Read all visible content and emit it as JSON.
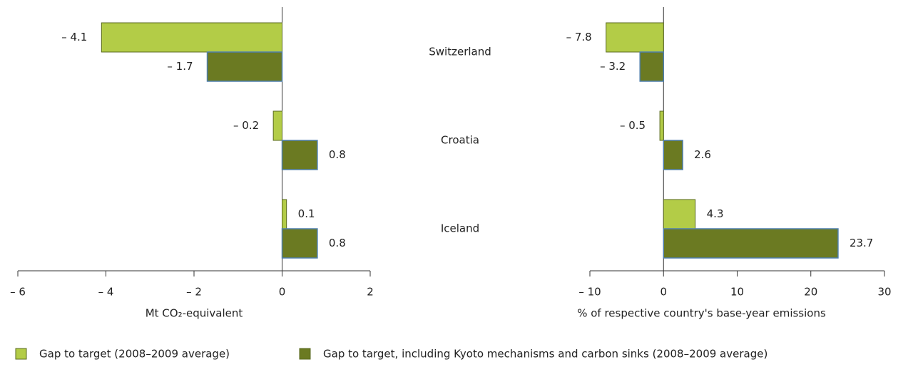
{
  "chart_data": [
    {
      "type": "barh",
      "categories": [
        "Switzerland",
        "Croatia",
        "Iceland"
      ],
      "xlabel": "Mt CO₂-equivalent",
      "xlim": [
        -6,
        2
      ],
      "xticks": [
        {
          "value": -6,
          "label": "– 6"
        },
        {
          "value": -4,
          "label": "– 4"
        },
        {
          "value": -2,
          "label": "– 2"
        },
        0,
        2
      ],
      "series": [
        {
          "name": "Gap to target (2008–2009 average)",
          "color": "#b3cc47",
          "values": [
            -4.1,
            -0.2,
            0.1
          ],
          "value_labels": [
            "– 4.1",
            "– 0.2",
            "0.1"
          ]
        },
        {
          "name": "Gap to target, including Kyoto mechanisms and carbon sinks (2008–2009 average)",
          "color": "#6b7a22",
          "values": [
            -1.7,
            0.8,
            0.8
          ],
          "value_labels": [
            "– 1.7",
            "0.8",
            "0.8"
          ]
        }
      ]
    },
    {
      "type": "barh",
      "xlabel": "% of respective country's base-year emissions",
      "xlim": [
        -10,
        30
      ],
      "xticks": [
        {
          "value": -10,
          "label": "– 10"
        },
        0,
        10,
        20,
        30
      ],
      "series": [
        {
          "color": "#b3cc47",
          "values": [
            -7.8,
            -0.5,
            4.3
          ],
          "value_labels": [
            "– 7.8",
            "– 0.5",
            "4.3"
          ]
        },
        {
          "color": "#6b7a22",
          "values": [
            -3.2,
            2.6,
            23.7
          ],
          "value_labels": [
            "– 3.2",
            "2.6",
            "23.7"
          ]
        }
      ]
    }
  ]
}
